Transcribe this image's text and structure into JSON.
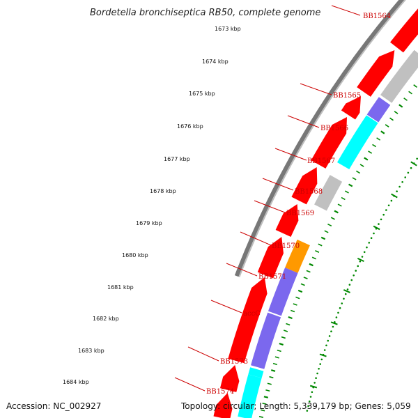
{
  "title": "Bordetella bronchiseptica RB50, complete genome",
  "accession": "Accession: NC_002927",
  "summary": "Topology: circular; Length: 5,339,179 bp; Genes: 5,059",
  "kbp_ticks": [
    "1673 kbp",
    "1674 kbp",
    "1675 kbp",
    "1676 kbp",
    "1677 kbp",
    "1678 kbp",
    "1679 kbp",
    "1680 kbp",
    "1681 kbp",
    "1682 kbp",
    "1683 kbp",
    "1684 kbp"
  ],
  "gene_labels": [
    "BB1564",
    "BB1565",
    "BB1566",
    "BB1567",
    "BB1568",
    "BB1569",
    "BB1570",
    "BB1571",
    "accC",
    "BB1573",
    "BB1574"
  ],
  "colors": {
    "cds_red": "#ff0000",
    "gray": "#c0c0c0",
    "purple": "#7b68ee",
    "cyan": "#00ffff",
    "orange": "#ff9900",
    "green": "#33cc33",
    "label_red": "#cc0000",
    "tick_green": "#008800"
  }
}
